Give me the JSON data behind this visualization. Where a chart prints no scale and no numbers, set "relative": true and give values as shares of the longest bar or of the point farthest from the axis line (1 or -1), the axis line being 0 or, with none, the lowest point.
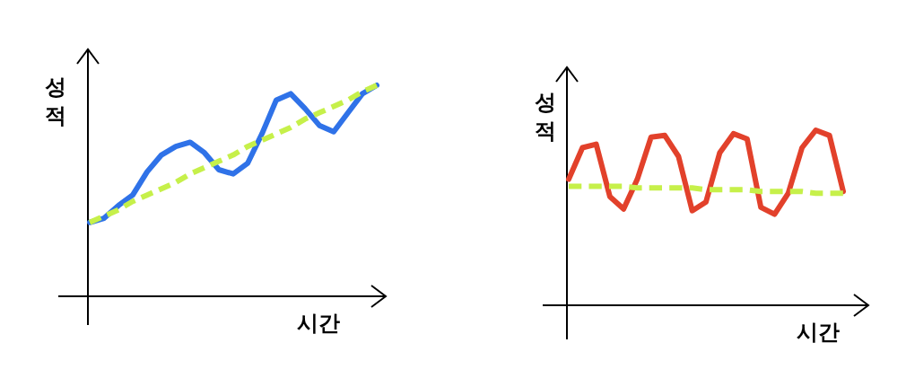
{
  "chart_data": [
    {
      "type": "line",
      "relative": true,
      "xlabel": "시간",
      "ylabel": "성적",
      "categories": [
        null,
        null,
        null,
        null,
        null,
        null,
        null,
        null,
        null,
        null,
        null,
        null,
        null,
        null,
        null,
        null,
        null,
        null,
        null,
        null,
        null
      ],
      "series": [
        {
          "color": "#2f72e8",
          "line_style": "solid",
          "values": [
            0.35,
            0.37,
            0.43,
            0.48,
            0.59,
            0.67,
            0.71,
            0.73,
            0.68,
            0.6,
            0.58,
            0.63,
            0.77,
            0.93,
            0.96,
            0.89,
            0.81,
            0.78,
            0.87,
            0.96,
            1
          ]
        },
        {
          "color": "#c6f04a",
          "line_style": "dashed",
          "values": [
            0.35,
            0.38,
            0.41,
            0.45,
            0.48,
            0.51,
            0.54,
            0.58,
            0.61,
            0.64,
            0.67,
            0.71,
            0.74,
            0.77,
            0.8,
            0.84,
            0.87,
            0.9,
            0.93,
            0.97,
            1
          ]
        }
      ]
    },
    {
      "type": "line",
      "relative": true,
      "xlabel": "시간",
      "ylabel": "성적",
      "categories": [
        null,
        null,
        null,
        null,
        null,
        null,
        null,
        null,
        null,
        null,
        null,
        null,
        null,
        null,
        null,
        null,
        null,
        null,
        null,
        null,
        null
      ],
      "series": [
        {
          "color": "#e2412b",
          "line_style": "solid",
          "values": [
            0.72,
            0.9,
            0.92,
            0.62,
            0.55,
            0.72,
            0.96,
            0.97,
            0.85,
            0.54,
            0.59,
            0.87,
            0.98,
            0.95,
            0.56,
            0.52,
            0.64,
            0.9,
            1,
            0.97,
            0.65
          ]
        },
        {
          "color": "#c6f04a",
          "line_style": "dashed",
          "values": [
            0.68,
            0.68,
            0.68,
            0.68,
            0.68,
            0.67,
            0.67,
            0.67,
            0.67,
            0.67,
            0.66,
            0.66,
            0.66,
            0.66,
            0.65,
            0.65,
            0.65,
            0.65,
            0.64,
            0.64,
            0.64
          ]
        }
      ]
    }
  ]
}
